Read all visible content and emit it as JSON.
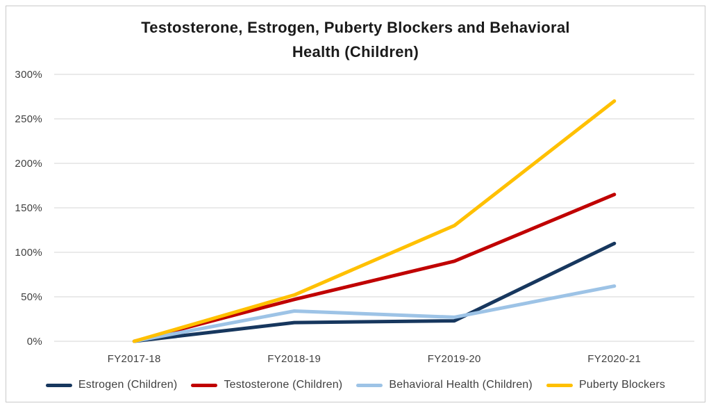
{
  "title": {
    "full": "Testosterone, Estrogen, Puberty Blockers and Behavioral Health (Children)",
    "line1": "Testosterone, Estrogen, Puberty Blockers and Behavioral",
    "line2": "Health (Children)"
  },
  "chart_data": {
    "type": "line",
    "title": "Testosterone, Estrogen, Puberty Blockers and Behavioral Health (Children)",
    "categories": [
      "FY2017-18",
      "FY2018-19",
      "FY2019-20",
      "FY2020-21"
    ],
    "series": [
      {
        "name": "Estrogen (Children)",
        "color": "#17375e",
        "values": [
          0,
          21,
          23,
          110
        ]
      },
      {
        "name": "Testosterone (Children)",
        "color": "#c00000",
        "values": [
          0,
          47,
          90,
          165
        ]
      },
      {
        "name": "Behavioral Health (Children)",
        "color": "#9dc3e6",
        "values": [
          0,
          34,
          27,
          62
        ]
      },
      {
        "name": "Puberty Blockers",
        "color": "#ffc000",
        "values": [
          0,
          52,
          130,
          270
        ]
      }
    ],
    "xlabel": "",
    "ylabel": "",
    "ylim": [
      0,
      300
    ],
    "ytick_step": 50,
    "ytick_suffix": "%",
    "y_tick_labels": [
      "0%",
      "50%",
      "100%",
      "150%",
      "200%",
      "250%",
      "300%"
    ],
    "grid": "horizontal-only",
    "legend_position": "bottom-center"
  },
  "colors": {
    "background": "#ffffff",
    "frame_border": "#c9c9c9",
    "gridline": "#e3e3e3",
    "title_text": "#1a1a1a",
    "tick_text": "#3f3f3f",
    "legend_text": "#3f3f3f"
  }
}
